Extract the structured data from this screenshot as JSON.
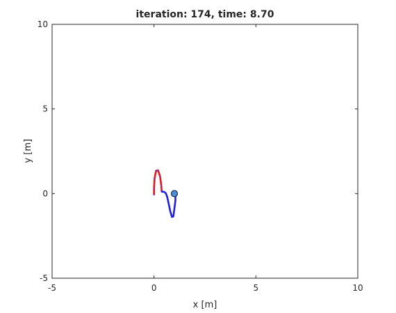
{
  "chart_data": {
    "type": "line",
    "title": "iteration: 174, time: 8.70",
    "xlabel": "x [m]",
    "ylabel": "y [m]",
    "xlim": [
      -5,
      10
    ],
    "ylim": [
      -5,
      10
    ],
    "xticks": [
      -5,
      0,
      5,
      10
    ],
    "yticks": [
      -5,
      0,
      5,
      10
    ],
    "grid": false,
    "series": [
      {
        "color": "#e8141e",
        "marker_color": "#3a3aff",
        "x": [
          0.0,
          0.0,
          0.03,
          0.1,
          0.2,
          0.3,
          0.36,
          0.38
        ],
        "y": [
          -0.05,
          0.3,
          0.9,
          1.35,
          1.38,
          1.0,
          0.45,
          0.12
        ]
      },
      {
        "color": "#1e1ee0",
        "x": [
          0.38,
          0.5,
          0.58,
          0.65,
          0.72,
          0.8,
          0.88,
          0.95,
          1.0,
          1.05,
          1.05,
          1.02
        ],
        "y": [
          0.12,
          0.1,
          0.02,
          -0.2,
          -0.6,
          -1.05,
          -1.38,
          -1.35,
          -0.9,
          -0.4,
          -0.05,
          0.0
        ]
      }
    ],
    "robot": {
      "x": 1.0,
      "y": 0.0,
      "color": "#4a8fd6",
      "edge_color": "#1a2a4a"
    }
  }
}
